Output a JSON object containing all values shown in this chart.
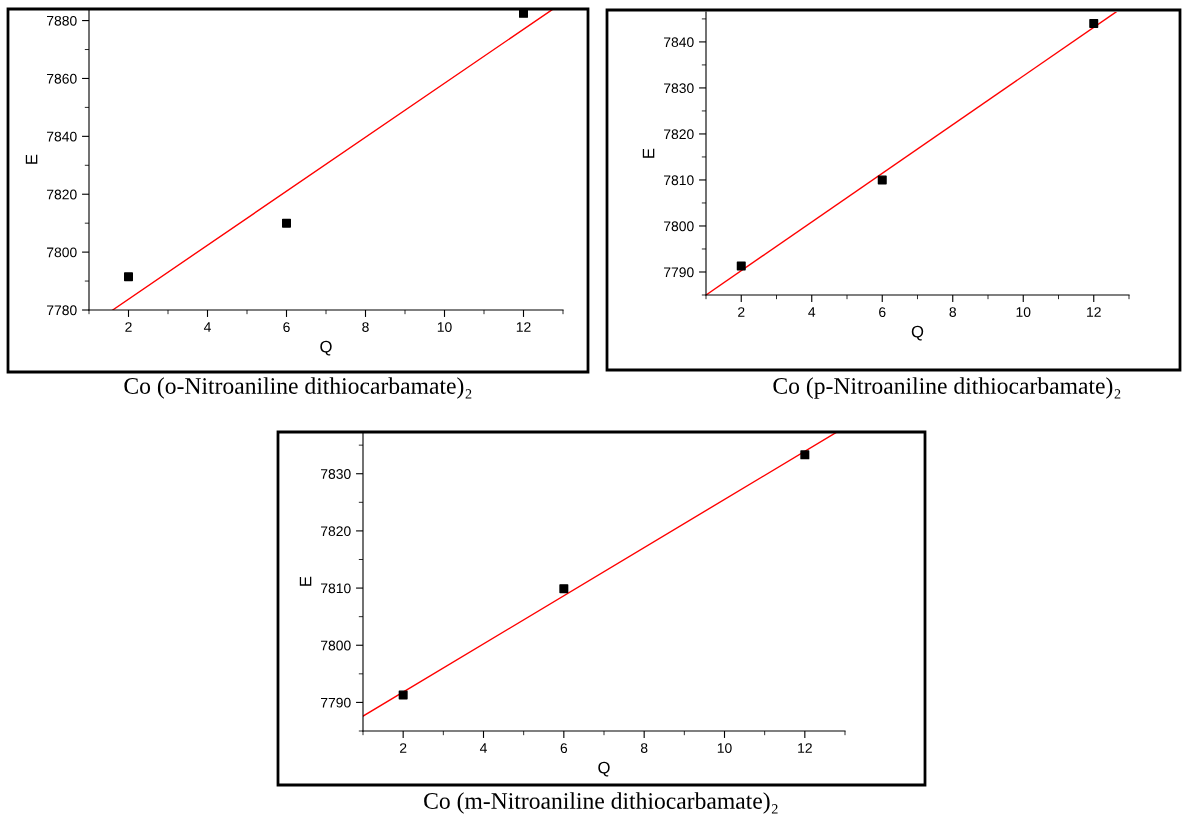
{
  "chart_data": [
    {
      "type": "scatter",
      "title": "Co (o-Nitroaniline dithiocarbamate)₂",
      "xlabel": "Q",
      "ylabel": "E",
      "xlim": [
        1,
        13
      ],
      "ylim": [
        7780,
        7884
      ],
      "xticks": [
        {
          "value": 1,
          "label": null
        },
        2,
        {
          "value": 3,
          "label": null
        },
        4,
        {
          "value": 5,
          "label": null
        },
        6,
        {
          "value": 7,
          "label": null
        },
        8,
        {
          "value": 9,
          "label": null
        },
        10,
        {
          "value": 11,
          "label": null
        },
        12,
        {
          "value": 13,
          "label": null
        }
      ],
      "yticks": [
        7780,
        {
          "value": 7790,
          "label": null
        },
        7800,
        {
          "value": 7810,
          "label": null
        },
        7820,
        {
          "value": 7830,
          "label": null
        },
        7840,
        {
          "value": 7850,
          "label": null
        },
        7860,
        {
          "value": 7870,
          "label": null
        },
        7880
      ],
      "marker": "square",
      "grid": false,
      "legend": false,
      "series": [
        {
          "color": "#000000",
          "x": [
            2,
            6,
            12
          ],
          "values": [
            7791.5,
            7810,
            7882.5
          ]
        },
        {
          "type": "line",
          "color": "#ff0000",
          "marker": "none",
          "x": [
            1.6,
            12.75
          ],
          "values": [
            7780,
            7884
          ]
        }
      ]
    },
    {
      "type": "scatter",
      "title": "Co (p-Nitroaniline dithiocarbamate)₂",
      "xlabel": "Q",
      "ylabel": "E",
      "xlim": [
        1,
        13
      ],
      "ylim": [
        7785,
        7846.5
      ],
      "xticks": [
        {
          "value": 1,
          "label": null
        },
        2,
        {
          "value": 3,
          "label": null
        },
        4,
        {
          "value": 5,
          "label": null
        },
        6,
        {
          "value": 7,
          "label": null
        },
        8,
        {
          "value": 9,
          "label": null
        },
        10,
        {
          "value": 11,
          "label": null
        },
        12,
        {
          "value": 13,
          "label": null
        }
      ],
      "yticks": [
        {
          "value": 7785,
          "label": null
        },
        7790,
        {
          "value": 7795,
          "label": null
        },
        7800,
        {
          "value": 7805,
          "label": null
        },
        7810,
        {
          "value": 7815,
          "label": null
        },
        7820,
        {
          "value": 7825,
          "label": null
        },
        7830,
        {
          "value": 7835,
          "label": null
        },
        7840,
        {
          "value": 7845,
          "label": null
        }
      ],
      "marker": "square",
      "grid": false,
      "legend": false,
      "series": [
        {
          "color": "#000000",
          "x": [
            2,
            6,
            12
          ],
          "values": [
            7791.3,
            7810,
            7844
          ]
        },
        {
          "type": "line",
          "color": "#ff0000",
          "marker": "none",
          "x": [
            1,
            12.63
          ],
          "values": [
            7785,
            7846.5
          ]
        }
      ]
    },
    {
      "type": "scatter",
      "title": "Co (m-Nitroaniline dithiocarbamate)₂",
      "xlabel": "Q",
      "ylabel": "E",
      "xlim": [
        1,
        13
      ],
      "ylim": [
        7785,
        7837.3
      ],
      "xticks": [
        {
          "value": 1,
          "label": null
        },
        2,
        {
          "value": 3,
          "label": null
        },
        4,
        {
          "value": 5,
          "label": null
        },
        6,
        {
          "value": 7,
          "label": null
        },
        8,
        {
          "value": 9,
          "label": null
        },
        10,
        {
          "value": 11,
          "label": null
        },
        12,
        {
          "value": 13,
          "label": null
        }
      ],
      "yticks": [
        {
          "value": 7785,
          "label": null
        },
        7790,
        {
          "value": 7795,
          "label": null
        },
        7800,
        {
          "value": 7805,
          "label": null
        },
        7810,
        {
          "value": 7815,
          "label": null
        },
        7820,
        {
          "value": 7825,
          "label": null
        },
        7830,
        {
          "value": 7835,
          "label": null
        }
      ],
      "marker": "square",
      "grid": false,
      "legend": false,
      "series": [
        {
          "color": "#000000",
          "x": [
            2,
            6,
            12
          ],
          "values": [
            7791.3,
            7809.9,
            7833.3
          ]
        },
        {
          "type": "line",
          "color": "#ff0000",
          "marker": "none",
          "x": [
            1,
            12.8
          ],
          "values": [
            7787.6,
            7837.3
          ]
        }
      ]
    }
  ]
}
